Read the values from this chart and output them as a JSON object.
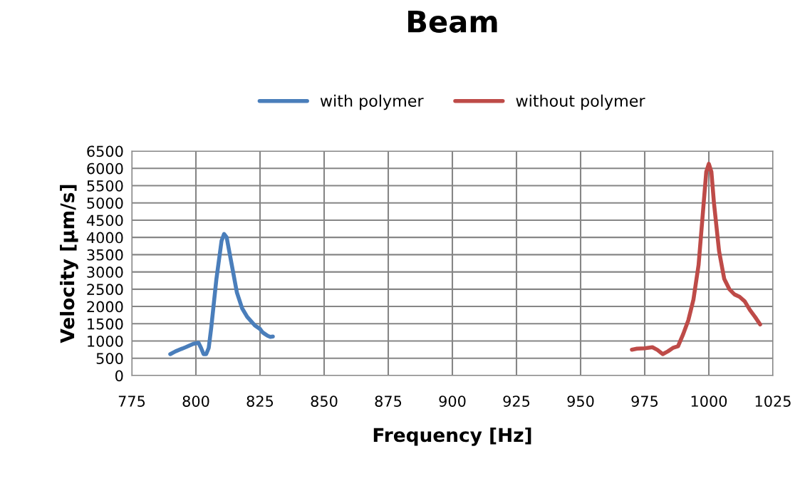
{
  "chart_data": {
    "type": "line",
    "title": "Beam",
    "xlabel": "Frequency [Hz]",
    "ylabel": "Velocity [µm/s]",
    "series": [
      {
        "name": "with polymer",
        "color": "#4a7ebb",
        "x": [
          790,
          792,
          796,
          799,
          801,
          802,
          803,
          804,
          805,
          806,
          808,
          810,
          811,
          812,
          814,
          816,
          818,
          820,
          823,
          825,
          826,
          827,
          828,
          829,
          830
        ],
        "values": [
          620,
          700,
          820,
          920,
          950,
          800,
          620,
          620,
          800,
          1400,
          2800,
          3900,
          4100,
          4000,
          3200,
          2400,
          1950,
          1700,
          1450,
          1350,
          1250,
          1200,
          1150,
          1120,
          1130
        ]
      },
      {
        "name": "without polymer",
        "color": "#be4b48",
        "x": [
          970,
          972,
          975,
          978,
          980,
          982,
          984,
          986,
          988,
          990,
          992,
          994,
          996,
          998,
          999,
          1000,
          1001,
          1002,
          1004,
          1006,
          1008,
          1010,
          1012,
          1014,
          1016,
          1018,
          1020
        ],
        "values": [
          750,
          780,
          790,
          820,
          740,
          620,
          700,
          800,
          850,
          1200,
          1600,
          2200,
          3200,
          5000,
          5900,
          6130,
          5900,
          5000,
          3600,
          2800,
          2500,
          2350,
          2280,
          2150,
          1900,
          1700,
          1480
        ]
      }
    ],
    "xlim": [
      775,
      1025
    ],
    "xticks": [
      775,
      800,
      825,
      850,
      875,
      900,
      925,
      950,
      975,
      1000,
      1025
    ],
    "ylim": [
      0,
      6500
    ],
    "yticks": [
      0,
      500,
      1000,
      1500,
      2000,
      2500,
      3000,
      3500,
      4000,
      4500,
      5000,
      5500,
      6000,
      6500
    ],
    "grid": true,
    "legend": "top",
    "marker": "none",
    "line_style": "solid"
  }
}
